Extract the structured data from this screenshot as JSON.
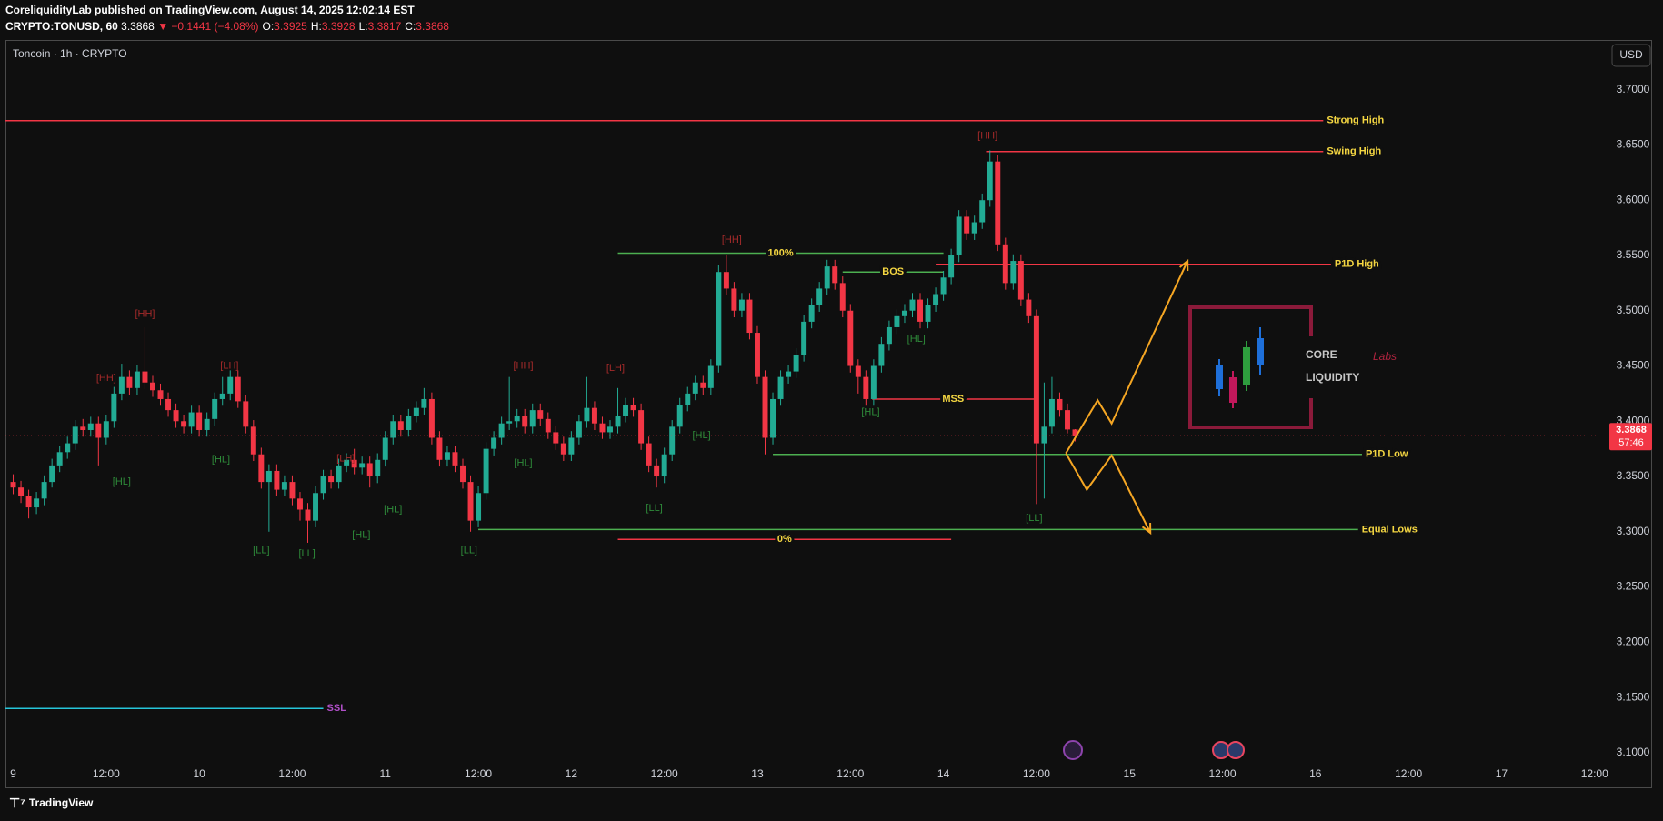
{
  "header": {
    "published": "CoreliquidityLab published on TradingView.com, August 14, 2025 12:02:14 EST",
    "symbol": "CRYPTO:TONUSD, 60",
    "last": "3.3868",
    "change": "▼ −0.1441 (−4.08%)",
    "ohlc": [
      {
        "k": "O:",
        "v": "3.3925"
      },
      {
        "k": "H:",
        "v": "3.3928"
      },
      {
        "k": "L:",
        "v": "3.3817"
      },
      {
        "k": "C:",
        "v": "3.3868"
      }
    ]
  },
  "chart_data": {
    "type": "candlestick",
    "title": "Toncoin · 1h · CRYPTO",
    "currency": "USD",
    "x": [
      0,
      1,
      2,
      3,
      4,
      5,
      6,
      7,
      8,
      9,
      10,
      11,
      12,
      13,
      14,
      15,
      16,
      17,
      18,
      19,
      20,
      21,
      22,
      23,
      24,
      25,
      26,
      27,
      28,
      29,
      30,
      31,
      32,
      33,
      34,
      35,
      36,
      37,
      38,
      39,
      40,
      41,
      42,
      43,
      44,
      45,
      46,
      47,
      48,
      49,
      50,
      51,
      52,
      53,
      54,
      55,
      56,
      57,
      58,
      59,
      60,
      61,
      62,
      63,
      64,
      65,
      66,
      67,
      68,
      69,
      70,
      71,
      72,
      73,
      74,
      75,
      76,
      77,
      78,
      79,
      80,
      81,
      82,
      83,
      84,
      85,
      86,
      87,
      88,
      89,
      90,
      91,
      92,
      93,
      94,
      95,
      96,
      97,
      98,
      99,
      100,
      101,
      102,
      103,
      104,
      105,
      106,
      107,
      108,
      109,
      110,
      111,
      112,
      113,
      114,
      115,
      116,
      117,
      118,
      119,
      120,
      121,
      122,
      123,
      124,
      125,
      126,
      127,
      128,
      129,
      130,
      131,
      132,
      133,
      134,
      135,
      136,
      137
    ],
    "open": [
      3.345,
      3.34,
      3.332,
      3.322,
      3.33,
      3.345,
      3.36,
      3.372,
      3.38,
      3.395,
      3.392,
      3.398,
      3.385,
      3.4,
      3.425,
      3.44,
      3.43,
      3.445,
      3.435,
      3.428,
      3.42,
      3.41,
      3.4,
      3.395,
      3.408,
      3.392,
      3.402,
      3.42,
      3.425,
      3.44,
      3.418,
      3.395,
      3.37,
      3.345,
      3.355,
      3.338,
      3.345,
      3.33,
      3.32,
      3.31,
      3.335,
      3.35,
      3.345,
      3.36,
      3.365,
      3.358,
      3.362,
      3.35,
      3.365,
      3.385,
      3.4,
      3.392,
      3.405,
      3.412,
      3.42,
      3.385,
      3.365,
      3.372,
      3.36,
      3.345,
      3.31,
      3.335,
      3.375,
      3.385,
      3.398,
      3.4,
      3.405,
      3.395,
      3.41,
      3.402,
      3.39,
      3.38,
      3.37,
      3.385,
      3.4,
      3.412,
      3.398,
      3.39,
      3.395,
      3.405,
      3.415,
      3.41,
      3.38,
      3.36,
      3.35,
      3.37,
      3.395,
      3.415,
      3.425,
      3.435,
      3.43,
      3.45,
      3.535,
      3.52,
      3.5,
      3.51,
      3.48,
      3.44,
      3.385,
      3.42,
      3.44,
      3.445,
      3.46,
      3.49,
      3.505,
      3.52,
      3.54,
      3.525,
      3.5,
      3.45,
      3.44,
      3.42,
      3.45,
      3.47,
      3.485,
      3.495,
      3.5,
      3.51,
      3.49,
      3.505,
      3.515,
      3.53,
      3.55,
      3.585,
      3.57,
      3.58,
      3.6,
      3.635,
      3.56,
      3.525,
      3.545,
      3.51,
      3.495,
      3.38,
      3.395,
      3.42,
      3.41,
      3.3925
    ],
    "high": [
      3.352,
      3.346,
      3.338,
      3.336,
      3.351,
      3.366,
      3.378,
      3.386,
      3.401,
      3.402,
      3.404,
      3.404,
      3.406,
      3.431,
      3.452,
      3.446,
      3.451,
      3.485,
      3.441,
      3.434,
      3.426,
      3.416,
      3.406,
      3.414,
      3.414,
      3.408,
      3.426,
      3.44,
      3.446,
      3.446,
      3.424,
      3.401,
      3.376,
      3.361,
      3.361,
      3.351,
      3.351,
      3.336,
      3.326,
      3.341,
      3.356,
      3.356,
      3.366,
      3.371,
      3.375,
      3.368,
      3.368,
      3.371,
      3.391,
      3.406,
      3.406,
      3.411,
      3.418,
      3.43,
      3.426,
      3.391,
      3.378,
      3.378,
      3.366,
      3.351,
      3.341,
      3.381,
      3.391,
      3.404,
      3.44,
      3.411,
      3.411,
      3.416,
      3.416,
      3.408,
      3.396,
      3.386,
      3.391,
      3.406,
      3.44,
      3.418,
      3.404,
      3.401,
      3.43,
      3.421,
      3.421,
      3.416,
      3.386,
      3.366,
      3.376,
      3.401,
      3.421,
      3.431,
      3.441,
      3.441,
      3.456,
      3.541,
      3.55,
      3.526,
      3.516,
      3.516,
      3.486,
      3.446,
      3.426,
      3.446,
      3.451,
      3.466,
      3.496,
      3.511,
      3.526,
      3.546,
      3.546,
      3.531,
      3.506,
      3.456,
      3.446,
      3.456,
      3.476,
      3.491,
      3.501,
      3.506,
      3.516,
      3.516,
      3.511,
      3.521,
      3.536,
      3.556,
      3.591,
      3.591,
      3.586,
      3.606,
      3.645,
      3.641,
      3.566,
      3.551,
      3.551,
      3.516,
      3.501,
      3.435,
      3.44,
      3.426,
      3.416,
      3.3928
    ],
    "low": [
      3.334,
      3.326,
      3.312,
      3.316,
      3.324,
      3.34,
      3.354,
      3.366,
      3.374,
      3.386,
      3.386,
      3.36,
      3.379,
      3.394,
      3.419,
      3.424,
      3.424,
      3.429,
      3.422,
      3.414,
      3.404,
      3.394,
      3.389,
      3.389,
      3.386,
      3.386,
      3.396,
      3.414,
      3.419,
      3.412,
      3.389,
      3.364,
      3.339,
      3.3,
      3.332,
      3.332,
      3.324,
      3.31,
      3.29,
      3.304,
      3.329,
      3.339,
      3.339,
      3.354,
      3.352,
      3.352,
      3.34,
      3.344,
      3.359,
      3.379,
      3.386,
      3.386,
      3.399,
      3.406,
      3.379,
      3.359,
      3.359,
      3.354,
      3.339,
      3.3,
      3.304,
      3.329,
      3.369,
      3.379,
      3.392,
      3.394,
      3.389,
      3.389,
      3.396,
      3.384,
      3.374,
      3.364,
      3.364,
      3.379,
      3.394,
      3.392,
      3.384,
      3.384,
      3.389,
      3.399,
      3.404,
      3.374,
      3.354,
      3.34,
      3.344,
      3.364,
      3.389,
      3.409,
      3.419,
      3.424,
      3.424,
      3.444,
      3.514,
      3.494,
      3.494,
      3.474,
      3.434,
      3.37,
      3.379,
      3.414,
      3.434,
      3.439,
      3.454,
      3.484,
      3.499,
      3.514,
      3.519,
      3.494,
      3.444,
      3.425,
      3.414,
      3.414,
      3.444,
      3.464,
      3.479,
      3.489,
      3.494,
      3.484,
      3.484,
      3.499,
      3.509,
      3.524,
      3.544,
      3.564,
      3.564,
      3.574,
      3.594,
      3.554,
      3.519,
      3.519,
      3.504,
      3.489,
      3.325,
      3.33,
      3.389,
      3.404,
      3.389,
      3.3817
    ],
    "close": [
      3.34,
      3.332,
      3.322,
      3.33,
      3.345,
      3.36,
      3.372,
      3.38,
      3.395,
      3.392,
      3.398,
      3.385,
      3.4,
      3.425,
      3.44,
      3.43,
      3.445,
      3.435,
      3.428,
      3.42,
      3.41,
      3.4,
      3.395,
      3.408,
      3.392,
      3.402,
      3.42,
      3.425,
      3.44,
      3.418,
      3.395,
      3.37,
      3.345,
      3.355,
      3.338,
      3.345,
      3.33,
      3.32,
      3.31,
      3.335,
      3.35,
      3.345,
      3.36,
      3.365,
      3.358,
      3.362,
      3.35,
      3.365,
      3.385,
      3.4,
      3.392,
      3.405,
      3.412,
      3.42,
      3.385,
      3.365,
      3.372,
      3.36,
      3.345,
      3.31,
      3.335,
      3.375,
      3.385,
      3.398,
      3.4,
      3.405,
      3.395,
      3.41,
      3.402,
      3.39,
      3.38,
      3.37,
      3.385,
      3.4,
      3.412,
      3.398,
      3.39,
      3.395,
      3.405,
      3.415,
      3.41,
      3.38,
      3.36,
      3.35,
      3.37,
      3.395,
      3.415,
      3.425,
      3.435,
      3.43,
      3.45,
      3.535,
      3.52,
      3.5,
      3.51,
      3.48,
      3.44,
      3.385,
      3.42,
      3.44,
      3.445,
      3.46,
      3.49,
      3.505,
      3.52,
      3.54,
      3.525,
      3.5,
      3.45,
      3.44,
      3.42,
      3.45,
      3.47,
      3.485,
      3.495,
      3.5,
      3.51,
      3.49,
      3.505,
      3.515,
      3.53,
      3.55,
      3.585,
      3.57,
      3.58,
      3.6,
      3.635,
      3.56,
      3.525,
      3.545,
      3.51,
      3.495,
      3.38,
      3.395,
      3.42,
      3.41,
      3.3925,
      3.3868
    ],
    "up_color": "#22ab94",
    "down_color": "#f23645",
    "xlim": [
      -1,
      204.5
    ],
    "xticks": [
      {
        "value": 0,
        "label": "9"
      },
      {
        "value": 12,
        "label": "12:00"
      },
      {
        "value": 24,
        "label": "10"
      },
      {
        "value": 36,
        "label": "12:00"
      },
      {
        "value": 48,
        "label": "11"
      },
      {
        "value": 60,
        "label": "12:00"
      },
      {
        "value": 72,
        "label": "12"
      },
      {
        "value": 84,
        "label": "12:00"
      },
      {
        "value": 96,
        "label": "13"
      },
      {
        "value": 108,
        "label": "12:00"
      },
      {
        "value": 120,
        "label": "14"
      },
      {
        "value": 132,
        "label": "12:00"
      },
      {
        "value": 144,
        "label": "15"
      },
      {
        "value": 156,
        "label": "12:00"
      },
      {
        "value": 168,
        "label": "16"
      },
      {
        "value": 180,
        "label": "12:00"
      },
      {
        "value": 192,
        "label": "17"
      },
      {
        "value": 204,
        "label": "12:00"
      }
    ],
    "ylim": [
      3.09,
      3.745
    ],
    "yticks": [
      {
        "value": 3.1,
        "label": "3.1000"
      },
      {
        "value": 3.15,
        "label": "3.1500"
      },
      {
        "value": 3.2,
        "label": "3.2000"
      },
      {
        "value": 3.25,
        "label": "3.2500"
      },
      {
        "value": 3.3,
        "label": "3.3000"
      },
      {
        "value": 3.35,
        "label": "3.3500"
      },
      {
        "value": 3.4,
        "label": "3.4000"
      },
      {
        "value": 3.45,
        "label": "3.4500"
      },
      {
        "value": 3.5,
        "label": "3.5000"
      },
      {
        "value": 3.55,
        "label": "3.5500"
      },
      {
        "value": 3.6,
        "label": "3.6000"
      },
      {
        "value": 3.65,
        "label": "3.6500"
      },
      {
        "value": 3.7,
        "label": "3.7000"
      }
    ],
    "grid": false,
    "last_price": 3.3868,
    "countdown": "57:46",
    "levels": [
      {
        "label": "Strong High",
        "value": 3.672,
        "from": -1,
        "to": 169,
        "color": "#f23645",
        "label_pos": "end",
        "label_color": "#f5d742"
      },
      {
        "label": "Swing High",
        "value": 3.644,
        "from": 125.5,
        "to": 169,
        "color": "#f23645",
        "label_pos": "end",
        "label_color": "#f5d742"
      },
      {
        "label": "P1D High",
        "value": 3.542,
        "from": 119,
        "to": 170,
        "color": "#f23645",
        "label_pos": "end",
        "label_color": "#f5d742"
      },
      {
        "label": "P1D Low",
        "value": 3.37,
        "from": 98,
        "to": 174,
        "color": "#4caf50",
        "label_pos": "end",
        "label_color": "#f5d742"
      },
      {
        "label": "Equal Lows",
        "value": 3.302,
        "from": 60,
        "to": 173.5,
        "color": "#4caf50",
        "label_pos": "end",
        "label_color": "#f5d742"
      },
      {
        "label": "SSL",
        "value": 3.14,
        "from": -1,
        "to": 40,
        "color": "#26c6da",
        "label_pos": "end",
        "label_color": "#b04fc8"
      },
      {
        "label": "100%",
        "value": 3.552,
        "from": 78,
        "to": 120,
        "color": "#4caf50",
        "label_pos": "middle",
        "label_color": "#f5d742"
      },
      {
        "label": "BOS",
        "value": 3.535,
        "from": 107,
        "to": 120,
        "color": "#4caf50",
        "label_pos": "middle",
        "label_color": "#f5d742"
      },
      {
        "label": "MSS",
        "value": 3.42,
        "from": 110.8,
        "to": 131.7,
        "color": "#f23645",
        "label_pos": "middle",
        "label_color": "#f5d742"
      },
      {
        "label": "0%",
        "value": 3.293,
        "from": 78,
        "to": 121,
        "color": "#f23645",
        "label_pos": "middle",
        "label_color": "#f5d742"
      }
    ],
    "pivots": [
      {
        "label": "[HH]",
        "x": 12,
        "y": 3.439,
        "color": "#a52a2a"
      },
      {
        "label": "[HH]",
        "x": 17,
        "y": 3.497,
        "color": "#a52a2a"
      },
      {
        "label": "[LH]",
        "x": 27.9,
        "y": 3.45,
        "color": "#a52a2a"
      },
      {
        "label": "[HL]",
        "x": 14,
        "y": 3.345,
        "color": "#2e8b3a"
      },
      {
        "label": "[HL]",
        "x": 26.8,
        "y": 3.365,
        "color": "#2e8b3a"
      },
      {
        "label": "[LL]",
        "x": 32,
        "y": 3.283,
        "color": "#2e8b3a"
      },
      {
        "label": "[LL]",
        "x": 37.9,
        "y": 3.28,
        "color": "#2e8b3a"
      },
      {
        "label": "[LH]",
        "x": 42.9,
        "y": 3.366,
        "color": "#a52a2a"
      },
      {
        "label": "[HL]",
        "x": 44.9,
        "y": 3.297,
        "color": "#2e8b3a"
      },
      {
        "label": "[HL]",
        "x": 49,
        "y": 3.32,
        "color": "#2e8b3a"
      },
      {
        "label": "[LL]",
        "x": 58.8,
        "y": 3.283,
        "color": "#2e8b3a"
      },
      {
        "label": "[HH]",
        "x": 65.8,
        "y": 3.45,
        "color": "#a52a2a"
      },
      {
        "label": "[HL]",
        "x": 65.8,
        "y": 3.362,
        "color": "#2e8b3a"
      },
      {
        "label": "[LH]",
        "x": 77.7,
        "y": 3.448,
        "color": "#a52a2a"
      },
      {
        "label": "[LL]",
        "x": 82.7,
        "y": 3.321,
        "color": "#2e8b3a"
      },
      {
        "label": "[HL]",
        "x": 88.8,
        "y": 3.387,
        "color": "#2e8b3a"
      },
      {
        "label": "[HH]",
        "x": 92.7,
        "y": 3.564,
        "color": "#a52a2a"
      },
      {
        "label": "[HL]",
        "x": 110.6,
        "y": 3.408,
        "color": "#2e8b3a"
      },
      {
        "label": "[HL]",
        "x": 116.5,
        "y": 3.474,
        "color": "#2e8b3a"
      },
      {
        "label": "[HH]",
        "x": 125.7,
        "y": 3.658,
        "color": "#a52a2a"
      },
      {
        "label": "[LL]",
        "x": 131.7,
        "y": 3.312,
        "color": "#2e8b3a"
      }
    ],
    "projections": [
      {
        "color": "#f5a623",
        "x": [
          135.8,
          139.9,
          141.7,
          151.5
        ],
        "y": [
          3.371,
          3.419,
          3.398,
          3.545
        ]
      },
      {
        "color": "#f5a623",
        "x": [
          135.8,
          138.5,
          141.7,
          146.7
        ],
        "y": [
          3.371,
          3.338,
          3.369,
          3.299
        ]
      }
    ]
  },
  "logo": {
    "word1": "CORE",
    "word2": "Labs",
    "word3": "LIQUIDITY"
  },
  "footer": {
    "brand": "TradingView"
  }
}
